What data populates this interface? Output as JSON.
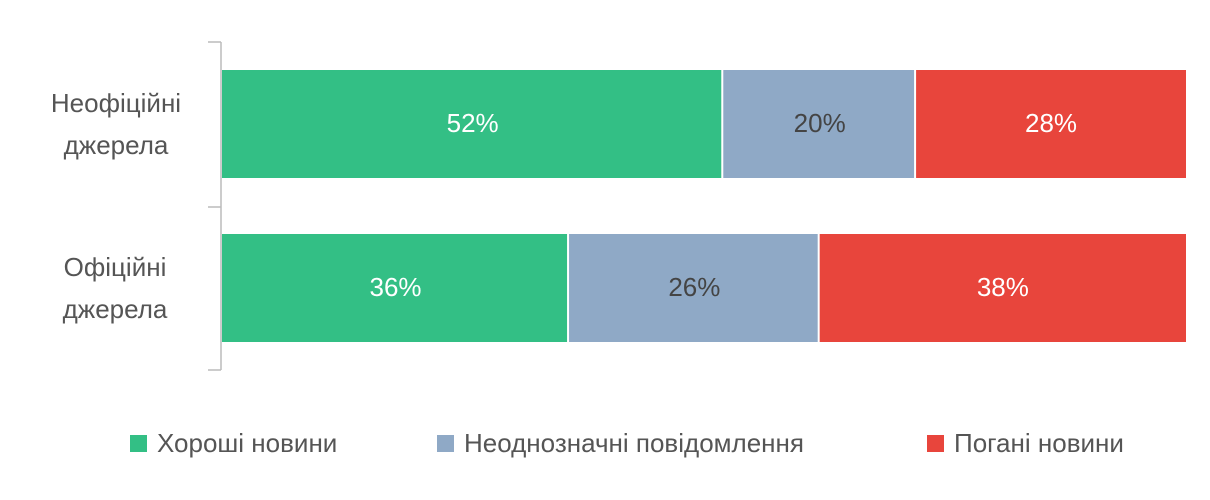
{
  "chart_data": {
    "type": "stacked-bar-horizontal",
    "categories": [
      "Неофіційні джерела",
      "Офіційні джерела"
    ],
    "xlim": [
      0,
      100
    ],
    "series": [
      {
        "name": "Хороші новини",
        "color": "#33bf85",
        "values": [
          52,
          36
        ],
        "value_labels": [
          "52%",
          "36%"
        ]
      },
      {
        "name": "Неоднозначні повідомлення",
        "color": "#8fa9c6",
        "values": [
          20,
          26
        ],
        "value_labels": [
          "20%",
          "26%"
        ]
      },
      {
        "name": "Погані новини",
        "color": "#e8453c",
        "values": [
          28,
          38
        ],
        "value_labels": [
          "28%",
          "38%"
        ]
      }
    ]
  }
}
